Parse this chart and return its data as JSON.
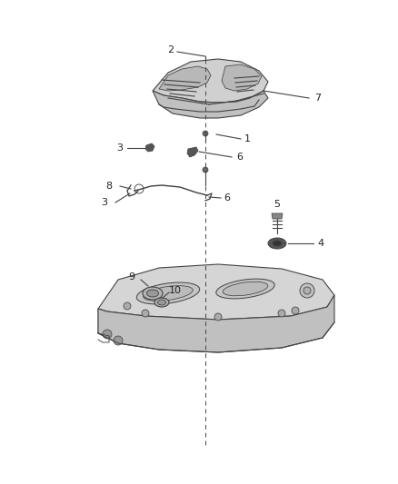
{
  "bg_color": "#ffffff",
  "fig_width": 4.38,
  "fig_height": 5.33,
  "dpi": 100,
  "line_color": "#444444",
  "text_color": "#222222",
  "fill_light": "#d8d8d8",
  "fill_mid": "#c0c0c0",
  "fill_dark": "#a8a8a8"
}
